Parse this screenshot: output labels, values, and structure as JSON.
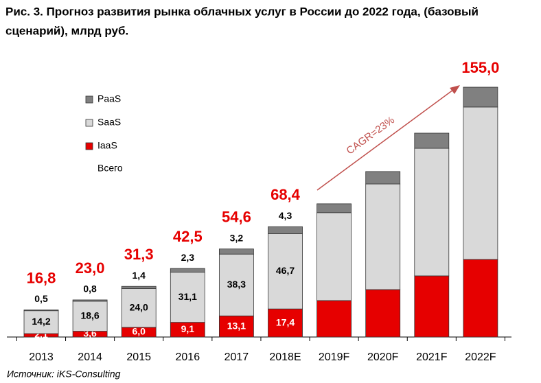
{
  "chart_data": {
    "type": "stacked_bar",
    "title": "Рис. 3. Прогноз развития рынка облачных услуг в России до 2022 года, (базовый",
    "title_line2": "сценарий), млрд руб.",
    "source": "Источник: iKS-Consulting",
    "annotation": "CAGR=23%",
    "categories": [
      "2013",
      "2014",
      "2015",
      "2016",
      "2017",
      "2018E",
      "2019F",
      "2020F",
      "2021F",
      "2022F"
    ],
    "series": [
      {
        "name": "IaaS",
        "color": "#e60000",
        "values": [
          2.1,
          3.6,
          6.0,
          9.1,
          13.1,
          17.4,
          22.6,
          29.4,
          37.9,
          48.1
        ],
        "value_labels": [
          "2,1",
          "3,6",
          "6,0",
          "9,1",
          "13,1",
          "17,4",
          null,
          null,
          null,
          null
        ]
      },
      {
        "name": "SaaS",
        "color": "#d9d9d9",
        "values": [
          14.2,
          18.6,
          24.0,
          31.1,
          38.3,
          46.7,
          54.5,
          65.5,
          79.1,
          94.5
        ],
        "value_labels": [
          "14,2",
          "18,6",
          "24,0",
          "31,1",
          "38,3",
          "46,7",
          null,
          null,
          null,
          null
        ]
      },
      {
        "name": "PaaS",
        "color": "#808080",
        "values": [
          0.5,
          0.8,
          1.4,
          2.3,
          3.2,
          4.3,
          5.5,
          7.7,
          9.4,
          12.3
        ],
        "value_labels": [
          "0,5",
          "0,8",
          "1,4",
          "2,3",
          "3,2",
          "4,3",
          null,
          null,
          null,
          null
        ]
      }
    ],
    "totals": {
      "name": "Всего",
      "color": "#e60000",
      "values": [
        16.8,
        23.0,
        31.3,
        42.5,
        54.6,
        68.4,
        null,
        null,
        null,
        155.0
      ],
      "value_labels": [
        "16,8",
        "23,0",
        "31,3",
        "42,5",
        "54,6",
        "68,4",
        null,
        null,
        null,
        "155,0"
      ]
    }
  }
}
